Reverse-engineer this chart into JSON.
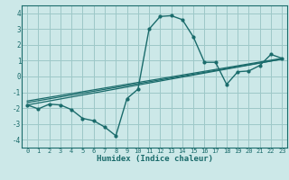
{
  "xlabel": "Humidex (Indice chaleur)",
  "xlim": [
    -0.5,
    23.5
  ],
  "ylim": [
    -4.5,
    4.5
  ],
  "yticks": [
    -4,
    -3,
    -2,
    -1,
    0,
    1,
    2,
    3,
    4
  ],
  "xticks": [
    0,
    1,
    2,
    3,
    4,
    5,
    6,
    7,
    8,
    9,
    10,
    11,
    12,
    13,
    14,
    15,
    16,
    17,
    18,
    19,
    20,
    21,
    22,
    23
  ],
  "bg_color": "#cce8e8",
  "grid_color": "#9dc8c8",
  "line_color": "#1a6b6b",
  "line1_x": [
    0,
    1,
    2,
    3,
    4,
    5,
    6,
    7,
    8,
    9,
    10,
    11,
    12,
    13,
    14,
    15,
    16,
    17,
    18,
    19,
    20,
    21,
    22,
    23
  ],
  "line1_y": [
    -1.8,
    -2.05,
    -1.75,
    -1.8,
    -2.1,
    -2.65,
    -2.8,
    -3.2,
    -3.75,
    -1.4,
    -0.8,
    3.0,
    3.8,
    3.85,
    3.6,
    2.5,
    0.9,
    0.9,
    -0.5,
    0.3,
    0.35,
    0.7,
    1.4,
    1.15
  ],
  "line2_x": [
    0,
    23
  ],
  "line2_y": [
    -1.8,
    1.1
  ],
  "line3_x": [
    0,
    23
  ],
  "line3_y": [
    -1.55,
    1.15
  ],
  "line4_x": [
    0,
    23
  ],
  "line4_y": [
    -1.65,
    1.1
  ]
}
